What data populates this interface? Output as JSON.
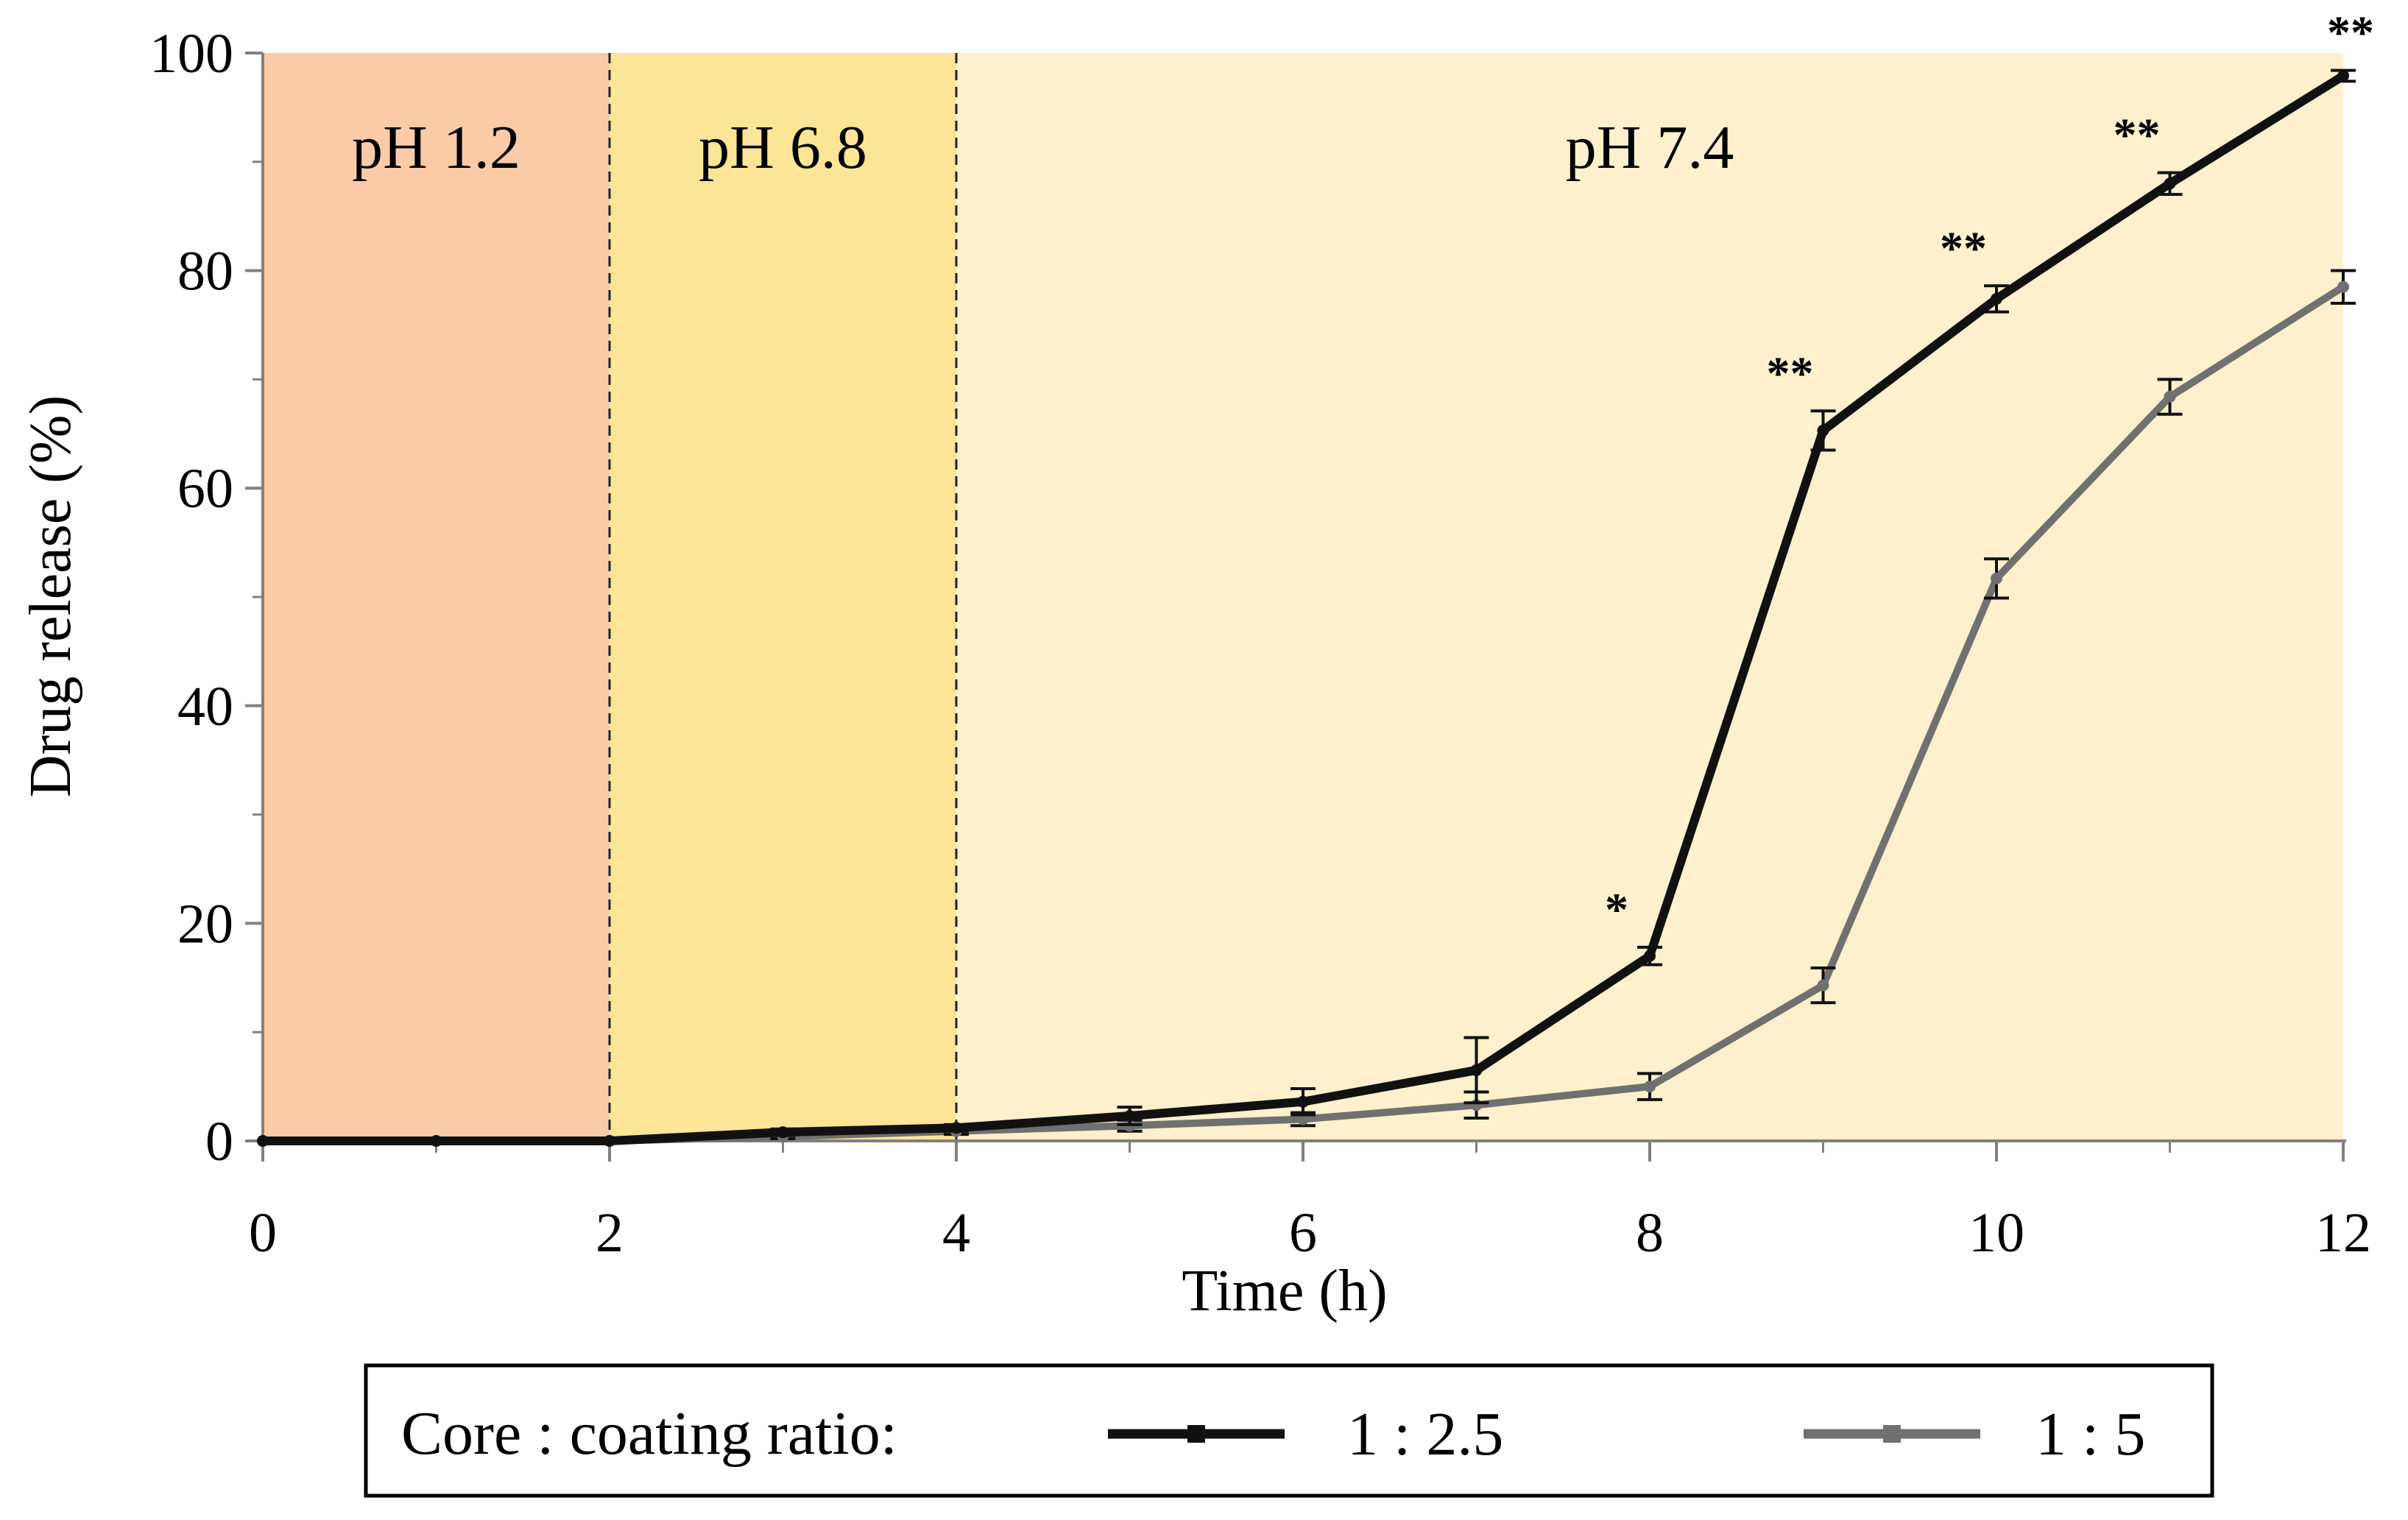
{
  "chart_data": {
    "type": "line",
    "title": "",
    "xlabel": "Time (h)",
    "ylabel": "Drug release (%)",
    "xlim": [
      0,
      12
    ],
    "ylim": [
      0,
      100
    ],
    "x_ticks": [
      "0",
      "2",
      "4",
      "6",
      "8",
      "10",
      "12"
    ],
    "y_ticks": [
      "0",
      "20",
      "40",
      "60",
      "80",
      "100"
    ],
    "phases": [
      {
        "label": "pH 1.2",
        "from": 0,
        "to": 2,
        "color": "#fbcba8"
      },
      {
        "label": "pH 6.8",
        "from": 2,
        "to": 4,
        "color": "#fde597"
      },
      {
        "label": "pH 7.4",
        "from": 4,
        "to": 12,
        "color": "#fef0cc"
      }
    ],
    "x": [
      0,
      1,
      2,
      3,
      4,
      5,
      6,
      7,
      8,
      9,
      10,
      11,
      12
    ],
    "series": [
      {
        "name": "1 : 2.5",
        "color": "#111111",
        "values": [
          0,
          0,
          0,
          0.8,
          1.2,
          2.3,
          3.6,
          6.5,
          17.0,
          65.3,
          77.4,
          88.0,
          97.9
        ],
        "errors": [
          0,
          0,
          0,
          0.3,
          0.3,
          0.8,
          1.2,
          3.0,
          0.8,
          1.8,
          1.2,
          1.0,
          0.5
        ]
      },
      {
        "name": "1 : 5",
        "color": "#707070",
        "values": [
          0,
          0,
          0,
          0.4,
          0.9,
          1.4,
          2.0,
          3.3,
          5.0,
          14.3,
          51.7,
          68.4,
          78.5
        ],
        "errors": [
          0,
          0,
          0,
          0.2,
          0.3,
          0.5,
          0.6,
          1.2,
          1.2,
          1.6,
          1.8,
          1.6,
          1.5
        ]
      }
    ],
    "significance": [
      {
        "x": 8,
        "label": "*"
      },
      {
        "x": 9,
        "label": "**"
      },
      {
        "x": 10,
        "label": "**"
      },
      {
        "x": 11,
        "label": "**"
      },
      {
        "x": 12,
        "label": "**"
      }
    ],
    "legend": {
      "title": "Core : coating ratio:",
      "position": "bottom"
    }
  }
}
